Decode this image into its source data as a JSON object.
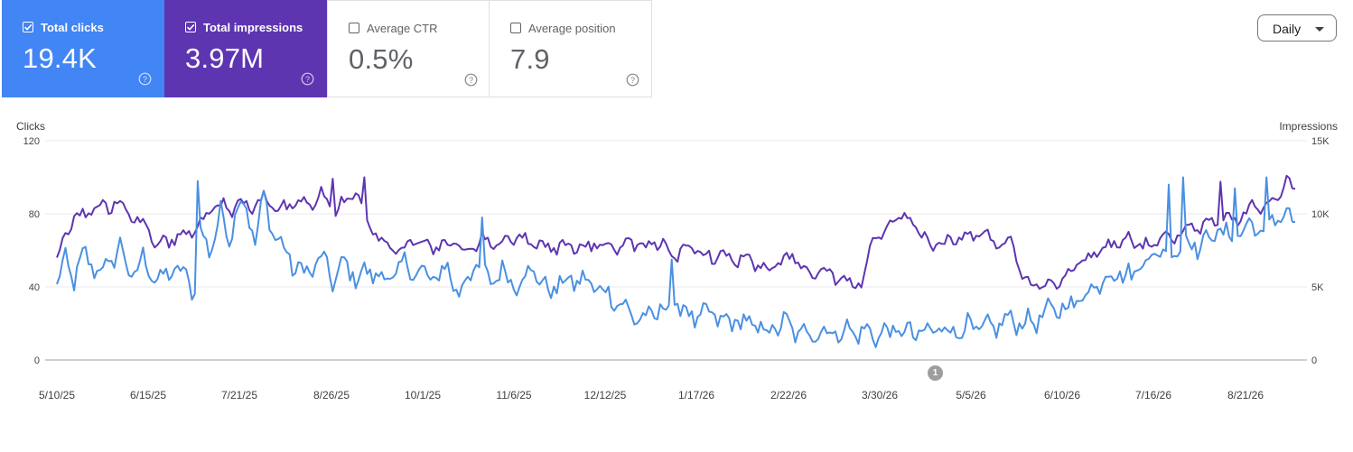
{
  "cards": [
    {
      "label": "Total clicks",
      "value": "19.4K",
      "checked": true,
      "color": "#4285f4"
    },
    {
      "label": "Total impressions",
      "value": "3.97M",
      "checked": true,
      "color": "#5e35b1"
    },
    {
      "label": "Average CTR",
      "value": "0.5%",
      "checked": false,
      "color": "#ffffff"
    },
    {
      "label": "Average position",
      "value": "7.9",
      "checked": false,
      "color": "#ffffff"
    }
  ],
  "granularity": {
    "label": "Daily",
    "icon": "caret-down-icon"
  },
  "annotation_label": "1",
  "chart_data": {
    "type": "line",
    "x_tick_labels": [
      "5/10/25",
      "6/15/25",
      "7/21/25",
      "8/26/25",
      "10/1/25",
      "11/6/25",
      "12/12/25",
      "1/17/26",
      "2/22/26",
      "3/30/26",
      "5/5/26",
      "6/10/26",
      "7/16/26",
      "8/21/26"
    ],
    "x_range": [
      "5/10/25",
      "9/10/26"
    ],
    "y_left": {
      "title": "Clicks",
      "ticks": [
        "0",
        "40",
        "80",
        "120"
      ],
      "range": [
        0,
        120
      ]
    },
    "y_right": {
      "title": "Impressions",
      "ticks": [
        "0",
        "5K",
        "10K",
        "15K"
      ],
      "range": [
        0,
        15000
      ]
    },
    "grid": true,
    "legend": "none",
    "series": [
      {
        "name": "Clicks",
        "axis": "left",
        "color": "#4a90e2",
        "anchors": [
          [
            0,
            40
          ],
          [
            3,
            55
          ],
          [
            6,
            44
          ],
          [
            10,
            58
          ],
          [
            14,
            48
          ],
          [
            18,
            52
          ],
          [
            22,
            62
          ],
          [
            26,
            45
          ],
          [
            30,
            55
          ],
          [
            36,
            42
          ],
          [
            40,
            50
          ],
          [
            44,
            47
          ],
          [
            48,
            38
          ],
          [
            50,
            68
          ],
          [
            53,
            60
          ],
          [
            57,
            80
          ],
          [
            60,
            66
          ],
          [
            63,
            88
          ],
          [
            66,
            82
          ],
          [
            69,
            66
          ],
          [
            72,
            88
          ],
          [
            75,
            72
          ],
          [
            79,
            60
          ],
          [
            83,
            50
          ],
          [
            88,
            48
          ],
          [
            92,
            56
          ],
          [
            96,
            44
          ],
          [
            100,
            52
          ],
          [
            104,
            46
          ],
          [
            110,
            48
          ],
          [
            116,
            44
          ],
          [
            121,
            52
          ],
          [
            126,
            48
          ],
          [
            130,
            44
          ],
          [
            136,
            50
          ],
          [
            140,
            36
          ],
          [
            145,
            52
          ],
          [
            150,
            44
          ],
          [
            155,
            48
          ],
          [
            160,
            42
          ],
          [
            166,
            50
          ],
          [
            170,
            38
          ],
          [
            176,
            42
          ],
          [
            181,
            44
          ],
          [
            185,
            42
          ],
          [
            190,
            38
          ],
          [
            194,
            34
          ],
          [
            199,
            26
          ],
          [
            204,
            22
          ],
          [
            209,
            26
          ],
          [
            214,
            30
          ],
          [
            218,
            28
          ],
          [
            223,
            22
          ],
          [
            228,
            26
          ],
          [
            232,
            20
          ],
          [
            237,
            22
          ],
          [
            243,
            18
          ],
          [
            248,
            16
          ],
          [
            253,
            20
          ],
          [
            259,
            14
          ],
          [
            264,
            16
          ],
          [
            270,
            15
          ],
          [
            275,
            16
          ],
          [
            281,
            15
          ],
          [
            286,
            14
          ],
          [
            292,
            16
          ],
          [
            297,
            15
          ],
          [
            302,
            14
          ],
          [
            307,
            18
          ],
          [
            313,
            16
          ],
          [
            318,
            18
          ],
          [
            323,
            16
          ],
          [
            328,
            20
          ],
          [
            333,
            22
          ],
          [
            338,
            20
          ],
          [
            343,
            24
          ],
          [
            348,
            28
          ],
          [
            353,
            30
          ],
          [
            358,
            36
          ],
          [
            362,
            42
          ],
          [
            366,
            46
          ],
          [
            369,
            50
          ],
          [
            372,
            44
          ],
          [
            375,
            48
          ],
          [
            378,
            56
          ],
          [
            381,
            54
          ],
          [
            384,
            62
          ],
          [
            387,
            58
          ],
          [
            390,
            62
          ],
          [
            393,
            66
          ],
          [
            396,
            62
          ],
          [
            399,
            64
          ],
          [
            402,
            68
          ],
          [
            405,
            72
          ],
          [
            408,
            66
          ],
          [
            411,
            70
          ],
          [
            414,
            72
          ],
          [
            417,
            74
          ],
          [
            420,
            68
          ],
          [
            423,
            78
          ],
          [
            426,
            80
          ],
          [
            429,
            76
          ],
          [
            431,
            74
          ]
        ],
        "amplitude": 6,
        "spikes": [
          [
            49,
            98
          ],
          [
            148,
            78
          ],
          [
            214,
            55
          ],
          [
            387,
            96
          ],
          [
            392,
            100
          ],
          [
            410,
            94
          ],
          [
            421,
            100
          ],
          [
            429,
            83
          ]
        ]
      },
      {
        "name": "Impressions",
        "axis": "right",
        "color": "#5e35b1",
        "anchors": [
          [
            0,
            6800
          ],
          [
            3,
            8500
          ],
          [
            6,
            10000
          ],
          [
            10,
            9800
          ],
          [
            14,
            10600
          ],
          [
            18,
            10400
          ],
          [
            22,
            11000
          ],
          [
            26,
            10000
          ],
          [
            30,
            9200
          ],
          [
            34,
            8200
          ],
          [
            38,
            8000
          ],
          [
            43,
            8500
          ],
          [
            48,
            8800
          ],
          [
            52,
            10000
          ],
          [
            56,
            10800
          ],
          [
            60,
            10200
          ],
          [
            64,
            10800
          ],
          [
            68,
            10400
          ],
          [
            72,
            11000
          ],
          [
            76,
            10400
          ],
          [
            80,
            10400
          ],
          [
            84,
            10800
          ],
          [
            88,
            10600
          ],
          [
            92,
            11400
          ],
          [
            96,
            10200
          ],
          [
            100,
            10800
          ],
          [
            104,
            11600
          ],
          [
            108,
            9200
          ],
          [
            112,
            8400
          ],
          [
            116,
            7800
          ],
          [
            120,
            7400
          ],
          [
            124,
            8400
          ],
          [
            128,
            8000
          ],
          [
            133,
            7600
          ],
          [
            138,
            8000
          ],
          [
            143,
            7400
          ],
          [
            148,
            8200
          ],
          [
            153,
            8000
          ],
          [
            158,
            8400
          ],
          [
            163,
            8200
          ],
          [
            168,
            8000
          ],
          [
            172,
            7600
          ],
          [
            176,
            7800
          ],
          [
            180,
            7800
          ],
          [
            184,
            7600
          ],
          [
            188,
            8000
          ],
          [
            192,
            7800
          ],
          [
            196,
            7600
          ],
          [
            200,
            8000
          ],
          [
            204,
            7600
          ],
          [
            208,
            8000
          ],
          [
            212,
            7800
          ],
          [
            216,
            7200
          ],
          [
            220,
            7600
          ],
          [
            224,
            7400
          ],
          [
            228,
            7000
          ],
          [
            232,
            7200
          ],
          [
            236,
            6800
          ],
          [
            240,
            7000
          ],
          [
            244,
            6400
          ],
          [
            248,
            6000
          ],
          [
            252,
            6800
          ],
          [
            256,
            7200
          ],
          [
            260,
            6000
          ],
          [
            264,
            5800
          ],
          [
            268,
            6000
          ],
          [
            272,
            5600
          ],
          [
            276,
            5200
          ],
          [
            280,
            5200
          ],
          [
            284,
            8200
          ],
          [
            288,
            8600
          ],
          [
            292,
            9600
          ],
          [
            296,
            9600
          ],
          [
            300,
            9000
          ],
          [
            304,
            7800
          ],
          [
            308,
            8000
          ],
          [
            312,
            8200
          ],
          [
            316,
            8400
          ],
          [
            320,
            8600
          ],
          [
            324,
            8400
          ],
          [
            328,
            8000
          ],
          [
            332,
            8200
          ],
          [
            336,
            5800
          ],
          [
            340,
            5200
          ],
          [
            344,
            5200
          ],
          [
            348,
            5400
          ],
          [
            352,
            6000
          ],
          [
            356,
            6600
          ],
          [
            360,
            7200
          ],
          [
            364,
            7600
          ],
          [
            368,
            8000
          ],
          [
            372,
            8400
          ],
          [
            376,
            8000
          ],
          [
            380,
            7800
          ],
          [
            384,
            8400
          ],
          [
            388,
            8200
          ],
          [
            392,
            8800
          ],
          [
            396,
            9000
          ],
          [
            400,
            9200
          ],
          [
            404,
            9600
          ],
          [
            408,
            9800
          ],
          [
            412,
            9600
          ],
          [
            416,
            10600
          ],
          [
            420,
            10400
          ],
          [
            424,
            11000
          ],
          [
            428,
            11800
          ],
          [
            431,
            12000
          ]
        ],
        "amplitude": 420,
        "spikes": [
          [
            96,
            12400
          ],
          [
            107,
            12500
          ],
          [
            405,
            12200
          ],
          [
            428,
            12600
          ]
        ]
      }
    ]
  }
}
